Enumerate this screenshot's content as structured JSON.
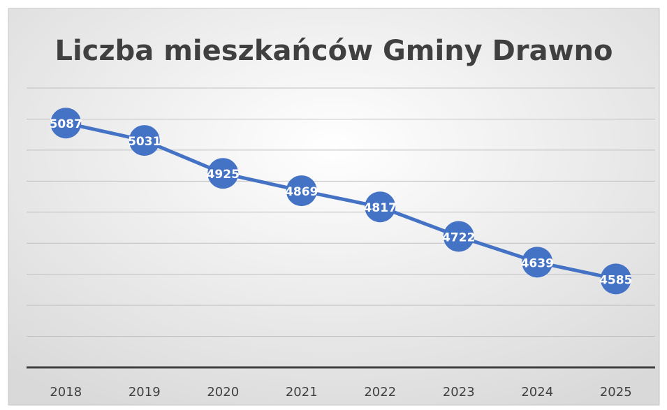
{
  "chart_data": {
    "type": "line",
    "title": "Liczba mieszkańców Gminy Drawno",
    "categories": [
      "2018",
      "2019",
      "2020",
      "2021",
      "2022",
      "2023",
      "2024",
      "2025"
    ],
    "values": [
      5087,
      5031,
      4925,
      4869,
      4817,
      4722,
      4639,
      4585
    ],
    "color": "#4472c4",
    "ylim": [
      4300,
      5200
    ],
    "yticks": [
      4300,
      4400,
      4500,
      4600,
      4700,
      4800,
      4900,
      5000,
      5100,
      5200
    ],
    "grid": true
  }
}
